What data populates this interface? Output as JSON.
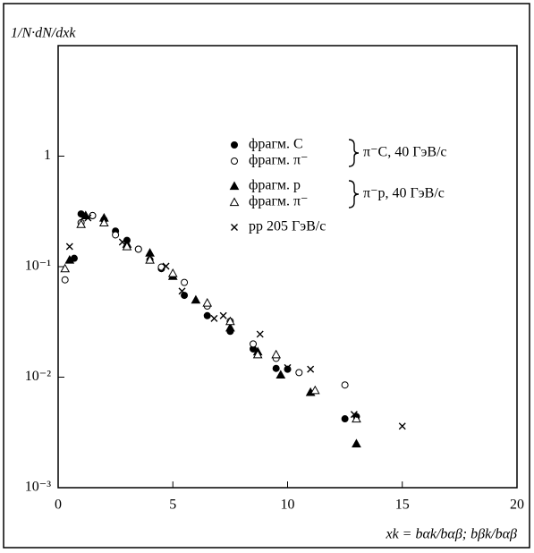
{
  "chart_data": {
    "type": "scatter",
    "y_label": "1/N·dN/dxk",
    "x_label": "xk = bαk/bαβ; bβk/bαβ",
    "xlim": [
      0,
      20
    ],
    "xticks": [
      0,
      5,
      10,
      15,
      20
    ],
    "ylim": [
      0.001,
      10
    ],
    "log_y": true,
    "yticks": [
      {
        "value": 0.001,
        "label": "10⁻³"
      },
      {
        "value": 0.01,
        "label": "10⁻²"
      },
      {
        "value": 0.1,
        "label": "10⁻¹"
      },
      {
        "value": 1,
        "label": "1"
      }
    ],
    "series": [
      {
        "name": "фрагм. C",
        "marker": "filled-circle",
        "color": "#000000",
        "x": [
          0.7,
          1.0,
          1.5,
          2.0,
          2.5,
          3.0,
          3.5,
          4.0,
          4.5,
          5.5,
          6.5,
          7.5,
          8.5,
          9.5,
          10.0,
          12.5,
          13.0
        ],
        "values": [
          0.119,
          0.3,
          0.29,
          0.266,
          0.21,
          0.173,
          0.144,
          0.115,
          0.096,
          0.055,
          0.036,
          0.026,
          0.018,
          0.012,
          0.0118,
          0.0042,
          0.0044
        ]
      },
      {
        "name": "фрагм. π⁻",
        "marker": "open-circle",
        "color": "#000000",
        "x": [
          0.3,
          1.0,
          1.5,
          2.5,
          3.5,
          4.5,
          5.5,
          6.5,
          7.5,
          8.5,
          9.5,
          10.5,
          12.5
        ],
        "values": [
          0.076,
          0.25,
          0.29,
          0.194,
          0.144,
          0.099,
          0.072,
          0.044,
          0.032,
          0.02,
          0.0148,
          0.011,
          0.0085
        ]
      },
      {
        "name": "фрагм. p",
        "marker": "filled-triangle",
        "color": "#000000",
        "x": [
          0.5,
          1.2,
          2.0,
          3.0,
          4.0,
          5.0,
          6.0,
          7.5,
          8.7,
          9.7,
          11.0,
          13.0
        ],
        "values": [
          0.115,
          0.29,
          0.276,
          0.16,
          0.133,
          0.082,
          0.05,
          0.028,
          0.017,
          0.0105,
          0.0073,
          0.0025
        ]
      },
      {
        "name": "фрагм. π⁻",
        "marker": "open-triangle",
        "color": "#000000",
        "x": [
          0.3,
          1.0,
          2.0,
          3.0,
          4.0,
          5.0,
          6.5,
          7.5,
          8.7,
          9.5,
          11.2,
          13.0
        ],
        "values": [
          0.096,
          0.242,
          0.25,
          0.152,
          0.115,
          0.087,
          0.047,
          0.032,
          0.016,
          0.016,
          0.0076,
          0.0042
        ]
      },
      {
        "name": "pp 205 ГэВ/с",
        "marker": "cross",
        "color": "#000000",
        "x": [
          0.5,
          1.3,
          2.8,
          4.7,
          5.4,
          6.8,
          7.2,
          8.8,
          10.0,
          11.0,
          12.9,
          15.0
        ],
        "values": [
          0.152,
          0.276,
          0.167,
          0.101,
          0.06,
          0.034,
          0.036,
          0.0245,
          0.0122,
          0.0118,
          0.0046,
          0.0036
        ]
      }
    ],
    "legend_groups": [
      {
        "label": "π⁻C, 40 ГэВ/с",
        "series": [
          0,
          1
        ]
      },
      {
        "label": "π⁻p, 40 ГэВ/с",
        "series": [
          2,
          3
        ]
      }
    ]
  }
}
